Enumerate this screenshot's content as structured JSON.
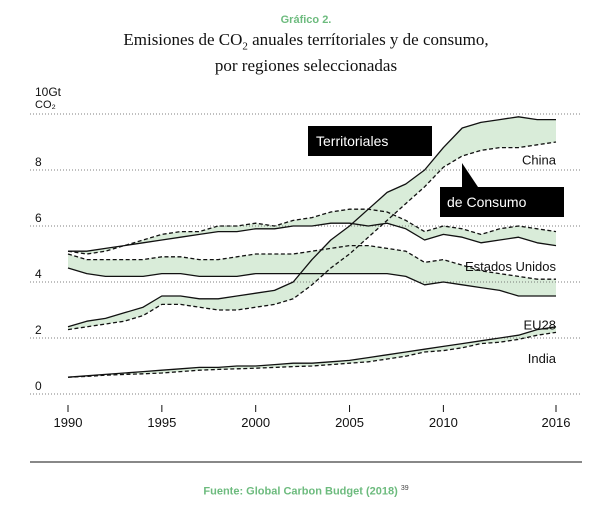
{
  "header": {
    "kicker": "Gráfico 2.",
    "title_line1_before": "Emisiones de CO",
    "title_line1_sub": "2",
    "title_line1_after": " anuales terrítoriales y de consumo,",
    "title_line2": "por regiones seleccionadas"
  },
  "footer": {
    "source": "Fuente: Global Carbon Budget (2018)",
    "note_ref": "39"
  },
  "colors": {
    "band_fill": "#d9ecd9",
    "line": "#111111",
    "accent": "#6dbb7e",
    "grid": "#555555"
  },
  "chart_data": {
    "type": "line",
    "title": "Emisiones de CO2 anuales terrítoriales y de consumo, por regiones seleccionadas",
    "ylabel_line1": "10Gt",
    "ylabel_line2": "CO₂",
    "xlim": [
      1990,
      2016
    ],
    "ylim": [
      0,
      10
    ],
    "x_ticks": [
      1990,
      1995,
      2000,
      2005,
      2010,
      2016
    ],
    "y_ticks": [
      0,
      2,
      4,
      6,
      8
    ],
    "grid": "horizontal dotted",
    "legend": [
      {
        "label": "Territoriales",
        "style": "solid",
        "placement": "callout"
      },
      {
        "label": "de Consumo",
        "style": "dashed",
        "placement": "callout"
      }
    ],
    "x": [
      1990,
      1991,
      1992,
      1993,
      1994,
      1995,
      1996,
      1997,
      1998,
      1999,
      2000,
      2001,
      2002,
      2003,
      2004,
      2005,
      2006,
      2007,
      2008,
      2009,
      2010,
      2011,
      2012,
      2013,
      2014,
      2015,
      2016
    ],
    "series": [
      {
        "name": "China",
        "style": "solid",
        "values": [
          2.4,
          2.6,
          2.7,
          2.9,
          3.1,
          3.5,
          3.5,
          3.4,
          3.4,
          3.5,
          3.6,
          3.7,
          4.0,
          4.8,
          5.5,
          6.0,
          6.6,
          7.2,
          7.5,
          8.0,
          8.8,
          9.5,
          9.7,
          9.8,
          9.9,
          9.8,
          9.8
        ]
      },
      {
        "name": "China",
        "style": "dashed",
        "values": [
          2.3,
          2.4,
          2.5,
          2.6,
          2.8,
          3.2,
          3.2,
          3.1,
          3.0,
          3.0,
          3.1,
          3.2,
          3.4,
          3.9,
          4.5,
          5.0,
          5.6,
          6.2,
          6.8,
          7.4,
          8.1,
          8.5,
          8.7,
          8.8,
          8.8,
          8.9,
          9.0
        ]
      },
      {
        "name": "Estados Unidos",
        "style": "solid",
        "values": [
          5.1,
          5.1,
          5.2,
          5.3,
          5.4,
          5.5,
          5.6,
          5.7,
          5.8,
          5.8,
          5.9,
          5.9,
          6.0,
          6.0,
          6.1,
          6.1,
          6.0,
          6.1,
          5.9,
          5.5,
          5.7,
          5.6,
          5.4,
          5.5,
          5.6,
          5.4,
          5.3
        ]
      },
      {
        "name": "Estados Unidos",
        "style": "dashed",
        "values": [
          5.1,
          5.0,
          5.1,
          5.3,
          5.5,
          5.7,
          5.8,
          5.8,
          6.0,
          6.0,
          6.1,
          6.0,
          6.2,
          6.3,
          6.5,
          6.6,
          6.6,
          6.5,
          6.2,
          5.8,
          6.0,
          5.9,
          5.7,
          5.9,
          6.0,
          5.9,
          5.8
        ]
      },
      {
        "name": "EU28",
        "style": "solid",
        "values": [
          4.5,
          4.3,
          4.2,
          4.2,
          4.2,
          4.3,
          4.3,
          4.2,
          4.2,
          4.2,
          4.3,
          4.3,
          4.3,
          4.3,
          4.3,
          4.3,
          4.3,
          4.3,
          4.2,
          3.9,
          4.0,
          3.9,
          3.8,
          3.7,
          3.5,
          3.5,
          3.5
        ]
      },
      {
        "name": "EU28",
        "style": "dashed",
        "values": [
          5.0,
          4.8,
          4.8,
          4.8,
          4.8,
          4.9,
          4.9,
          4.8,
          4.8,
          4.9,
          5.0,
          5.0,
          5.0,
          5.1,
          5.2,
          5.3,
          5.3,
          5.2,
          5.1,
          4.7,
          4.8,
          4.6,
          4.4,
          4.3,
          4.2,
          4.1,
          4.1
        ]
      },
      {
        "name": "India",
        "style": "solid",
        "values": [
          0.6,
          0.65,
          0.7,
          0.75,
          0.8,
          0.85,
          0.9,
          0.95,
          0.95,
          1.0,
          1.0,
          1.05,
          1.1,
          1.1,
          1.15,
          1.2,
          1.3,
          1.4,
          1.5,
          1.6,
          1.7,
          1.8,
          1.9,
          2.0,
          2.1,
          2.3,
          2.4
        ]
      },
      {
        "name": "India",
        "style": "dashed",
        "values": [
          0.6,
          0.63,
          0.67,
          0.7,
          0.72,
          0.75,
          0.8,
          0.85,
          0.88,
          0.9,
          0.92,
          0.95,
          0.98,
          1.0,
          1.05,
          1.1,
          1.15,
          1.25,
          1.35,
          1.5,
          1.55,
          1.65,
          1.8,
          1.85,
          1.95,
          2.1,
          2.2
        ]
      }
    ],
    "region_labels": [
      {
        "text": "China",
        "year": 2016,
        "y": 8.2
      },
      {
        "text": "Estados Unidos",
        "year": 2016,
        "y": 4.4
      },
      {
        "text": "EU28",
        "year": 2016,
        "y": 2.3
      },
      {
        "text": "India",
        "year": 2016,
        "y": 1.1
      }
    ]
  }
}
